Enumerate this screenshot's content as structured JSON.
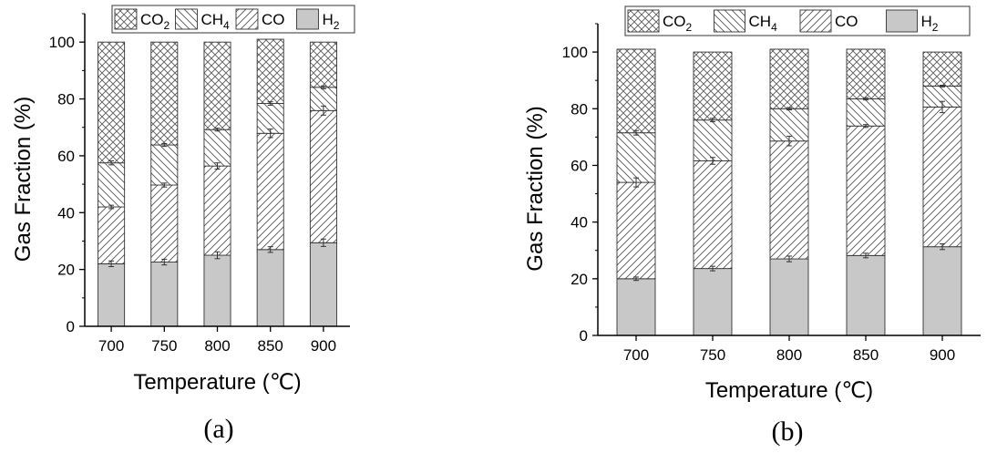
{
  "chart_data": [
    {
      "type": "bar",
      "stacked": true,
      "caption": "(a)",
      "xlabel": "Temperature (℃)",
      "ylabel": "Gas Fraction (%)",
      "categories": [
        "700",
        "750",
        "800",
        "850",
        "900"
      ],
      "ylim": [
        0,
        110
      ],
      "yticks": [
        "0",
        "20",
        "40",
        "60",
        "80",
        "100"
      ],
      "legend_position": "top",
      "series": [
        {
          "name": "H2",
          "label_main": "H",
          "label_sub": "2",
          "pattern": "solid-gray",
          "values": [
            22.0,
            22.6,
            25.0,
            27.0,
            29.4
          ],
          "errors": [
            1.0,
            1.0,
            1.2,
            1.0,
            1.3
          ]
        },
        {
          "name": "CO",
          "label_main": "CO",
          "label_sub": "",
          "pattern": "forward-hatch",
          "values": [
            20.0,
            27.1,
            31.4,
            40.9,
            46.5
          ],
          "errors": [
            0.6,
            0.7,
            1.1,
            1.5,
            1.6
          ]
        },
        {
          "name": "CH4",
          "label_main": "CH",
          "label_sub": "4",
          "pattern": "back-hatch",
          "values": [
            15.5,
            14.1,
            12.8,
            10.5,
            8.2
          ],
          "errors": [
            0.7,
            0.5,
            0.5,
            0.6,
            0.5
          ]
        },
        {
          "name": "CO2",
          "label_main": "CO",
          "label_sub": "2",
          "pattern": "crosshatch",
          "values": [
            42.5,
            36.2,
            30.8,
            22.6,
            15.9
          ],
          "errors": [
            0,
            0,
            0,
            0,
            0
          ]
        }
      ],
      "legend_order": [
        "CO2",
        "CH4",
        "CO",
        "H2"
      ]
    },
    {
      "type": "bar",
      "stacked": true,
      "caption": "(b)",
      "xlabel": "Temperature (℃)",
      "ylabel": "Gas Fraction (%)",
      "categories": [
        "700",
        "750",
        "800",
        "850",
        "900"
      ],
      "ylim": [
        0,
        110
      ],
      "yticks": [
        "0",
        "20",
        "40",
        "60",
        "80",
        "100"
      ],
      "legend_position": "top",
      "series": [
        {
          "name": "H2",
          "label_main": "H",
          "label_sub": "2",
          "pattern": "solid-gray",
          "values": [
            20.0,
            23.6,
            27.0,
            28.2,
            31.3
          ],
          "errors": [
            0.6,
            0.8,
            1.0,
            0.8,
            1.0
          ]
        },
        {
          "name": "CO",
          "label_main": "CO",
          "label_sub": "",
          "pattern": "forward-hatch",
          "values": [
            34.0,
            38.0,
            41.6,
            45.7,
            49.3
          ],
          "errors": [
            1.6,
            1.2,
            1.7,
            0.5,
            2.0
          ]
        },
        {
          "name": "CH4",
          "label_main": "CH",
          "label_sub": "4",
          "pattern": "back-hatch",
          "values": [
            17.5,
            14.4,
            11.4,
            9.6,
            7.4
          ],
          "errors": [
            0.8,
            0.6,
            0.4,
            0.4,
            0.3
          ]
        },
        {
          "name": "CO2",
          "label_main": "CO",
          "label_sub": "2",
          "pattern": "crosshatch",
          "values": [
            29.5,
            24.0,
            21.0,
            17.5,
            12.0
          ],
          "errors": [
            0,
            0,
            0,
            0,
            0
          ]
        }
      ],
      "legend_order": [
        "CO2",
        "CH4",
        "CO",
        "H2"
      ]
    }
  ]
}
